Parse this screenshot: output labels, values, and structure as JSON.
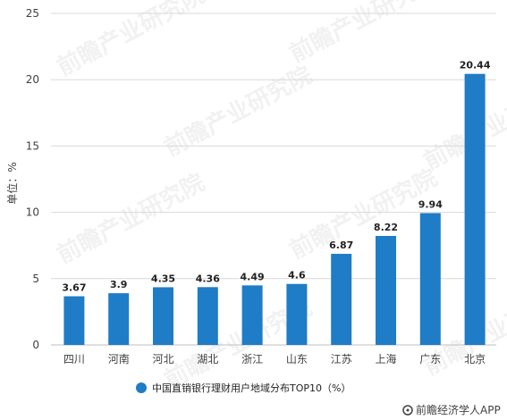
{
  "chart_data": {
    "type": "bar",
    "categories": [
      "四川",
      "河南",
      "河北",
      "湖北",
      "浙江",
      "山东",
      "江苏",
      "上海",
      "广东",
      "北京"
    ],
    "series": [
      {
        "name": "中国直销银行理财用户地域分布TOP10（%）",
        "values": [
          3.67,
          3.9,
          4.35,
          4.36,
          4.49,
          4.6,
          6.87,
          8.22,
          9.94,
          20.44
        ]
      }
    ],
    "data_labels": [
      "3.67",
      "3.9",
      "4.35",
      "4.36",
      "4.49",
      "4.6",
      "6.87",
      "8.22",
      "9.94",
      "20.44"
    ],
    "ylabel": "单位：%",
    "ylim": [
      0,
      25
    ],
    "yticks": [
      0,
      5,
      10,
      15,
      20,
      25
    ],
    "grid": true,
    "legend_position": "bottom",
    "bar_color": "#1f7cc6"
  },
  "credit": "前瞻经济学人APP",
  "watermark": "前瞻产业研究院"
}
